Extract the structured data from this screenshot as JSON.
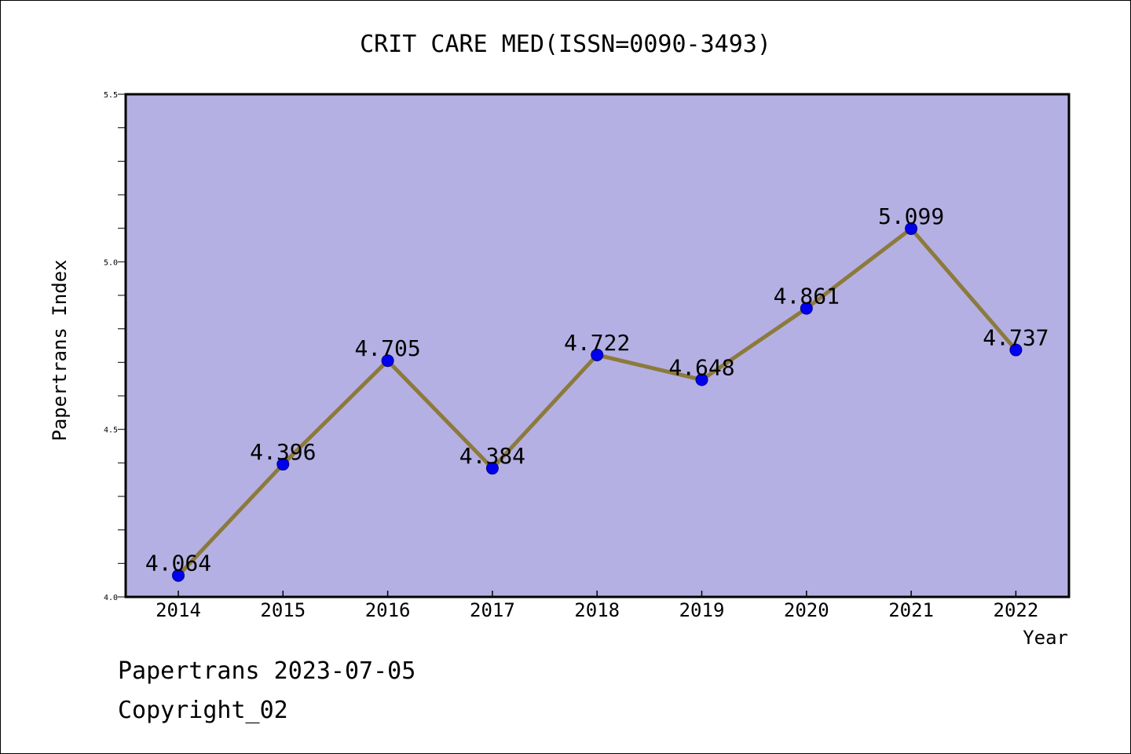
{
  "chart_data": {
    "type": "line",
    "title": "CRIT CARE MED(ISSN=0090-3493)",
    "xlabel": "Year",
    "ylabel": "Papertrans Index",
    "x": [
      "2014",
      "2015",
      "2016",
      "2017",
      "2018",
      "2019",
      "2020",
      "2021",
      "2022"
    ],
    "values": [
      4.064,
      4.396,
      4.705,
      4.384,
      4.722,
      4.648,
      4.861,
      5.099,
      4.737
    ],
    "data_labels": [
      "4.064",
      "4.396",
      "4.705",
      "4.384",
      "4.722",
      "4.648",
      "4.861",
      "5.099",
      "4.737"
    ],
    "ylim": [
      4.0,
      5.5
    ],
    "yticks": [
      "4.0",
      "4.5",
      "5.0",
      "5.5"
    ],
    "grid": false,
    "colors": {
      "plot_background": "#b5b0e3",
      "line": "#8c7a3c",
      "marker": "#0000ee",
      "marker_edge": "#00008b"
    }
  },
  "footer": {
    "line1": "Papertrans 2023-07-05",
    "line2": "Copyright_02"
  }
}
